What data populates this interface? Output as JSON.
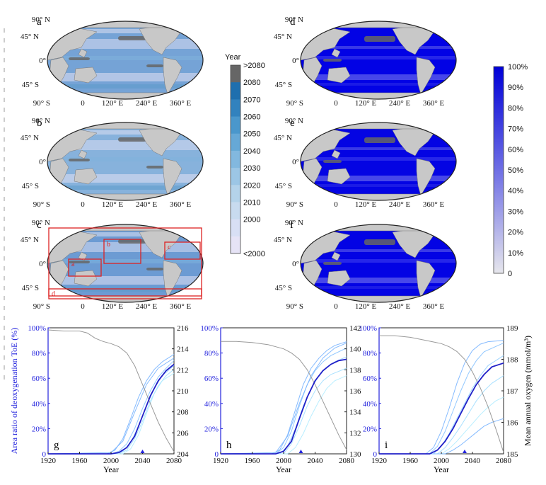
{
  "colors": {
    "land": "#c8c8c8",
    "exceed": "#666666",
    "dark_blue": "#0000e0",
    "line_gray": "#9a9a9a",
    "mean_line": "#2020c8",
    "red_box": "#dd2222"
  },
  "maps": [
    {
      "letter": "a",
      "style": "year",
      "shade": 0.55
    },
    {
      "letter": "b",
      "style": "year",
      "shade": 0.25
    },
    {
      "letter": "c",
      "style": "year",
      "shade": 0.7,
      "regions": [
        "a",
        "b",
        "c",
        "d"
      ]
    },
    {
      "letter": "d",
      "style": "pct",
      "shade": 0.96
    },
    {
      "letter": "e",
      "style": "pct",
      "shade": 0.9
    },
    {
      "letter": "f",
      "style": "pct",
      "shade": 0.92
    }
  ],
  "map_labels": {
    "lat": [
      "90° N",
      "45° N",
      "0°",
      "45° S",
      "90° S"
    ],
    "lon": [
      "0",
      "120° E",
      "240° E",
      "360° E"
    ]
  },
  "year_colorbar": {
    "title": "Year",
    "labels": [
      ">2080",
      "2080",
      "2070",
      "2060",
      "2050",
      "2040",
      "2030",
      "2020",
      "2010",
      "2000",
      "<2000"
    ],
    "colors": [
      "#666666",
      "#1f6fae",
      "#3282be",
      "#4a97cc",
      "#66a8d6",
      "#82b8df",
      "#9cc6e5",
      "#b4d3ea",
      "#c8dbef",
      "#d8dff4",
      "#e6e3f6"
    ]
  },
  "pct_colorbar": {
    "labels": [
      "100%",
      "90%",
      "80%",
      "70%",
      "60%",
      "50%",
      "40%",
      "30%",
      "20%",
      "10%",
      "0"
    ]
  },
  "chart_data": [
    {
      "type": "line",
      "panel": "g",
      "xlabel": "Year",
      "ylabel": "Area ratio of deoxygenation ToE (%)",
      "xlim": [
        1920,
        2080
      ],
      "x_ticks": [
        1920,
        1960,
        2000,
        2040,
        2080
      ],
      "ylim_left": [
        0,
        100
      ],
      "y_ticks_left": [
        "0",
        "20%",
        "40%",
        "60%",
        "80%",
        "100%"
      ],
      "ylim_right": [
        204,
        216
      ],
      "y_ticks_right": [
        204,
        206,
        208,
        210,
        212,
        214,
        216
      ],
      "marker_year": 2040,
      "mean_toe": {
        "x": [
          1920,
          2000,
          2010,
          2020,
          2030,
          2040,
          2050,
          2060,
          2070,
          2080
        ],
        "y": [
          0,
          0,
          1,
          5,
          14,
          30,
          46,
          58,
          66,
          71
        ]
      },
      "member_toe": [
        {
          "x": [
            1920,
            1995,
            2005,
            2015,
            2025,
            2035,
            2045,
            2055,
            2065,
            2080
          ],
          "y": [
            0,
            0,
            3,
            12,
            28,
            45,
            58,
            67,
            73,
            79
          ]
        },
        {
          "x": [
            1920,
            2000,
            2010,
            2020,
            2030,
            2040,
            2050,
            2060,
            2070,
            2080
          ],
          "y": [
            0,
            0,
            2,
            8,
            20,
            36,
            50,
            61,
            68,
            74
          ]
        },
        {
          "x": [
            1920,
            2005,
            2015,
            2025,
            2035,
            2045,
            2055,
            2065,
            2080
          ],
          "y": [
            0,
            0,
            2,
            9,
            22,
            38,
            52,
            62,
            70
          ]
        },
        {
          "x": [
            1920,
            2010,
            2020,
            2030,
            2040,
            2050,
            2060,
            2070,
            2080
          ],
          "y": [
            0,
            0,
            3,
            12,
            26,
            42,
            54,
            62,
            67
          ]
        },
        {
          "x": [
            1920,
            2015,
            2025,
            2035,
            2045,
            2055,
            2065,
            2080
          ],
          "y": [
            0,
            0,
            4,
            15,
            32,
            48,
            58,
            64
          ]
        },
        {
          "x": [
            1920,
            2000,
            2015,
            2030,
            2045,
            2060,
            2080
          ],
          "y": [
            0,
            1,
            10,
            33,
            55,
            68,
            76
          ]
        }
      ],
      "mean_oxygen": {
        "x": [
          1920,
          1940,
          1960,
          1970,
          1980,
          1990,
          2000,
          2010,
          2020,
          2030,
          2040,
          2050,
          2060,
          2070,
          2080
        ],
        "y": [
          215.8,
          215.7,
          215.7,
          215.5,
          215.0,
          214.7,
          214.5,
          214.2,
          213.6,
          212.4,
          210.6,
          208.8,
          207.0,
          205.5,
          204.2
        ]
      }
    },
    {
      "type": "line",
      "panel": "h",
      "xlabel": "Year",
      "xlim": [
        1920,
        2080
      ],
      "x_ticks": [
        1920,
        1960,
        2000,
        2040,
        2080
      ],
      "ylim_left": [
        0,
        100
      ],
      "y_ticks_left": [
        "0",
        "20%",
        "40%",
        "60%",
        "80%",
        "100%"
      ],
      "ylim_right": [
        130,
        142
      ],
      "y_ticks_right": [
        130,
        132,
        134,
        136,
        138,
        140,
        142
      ],
      "marker_year": 2022,
      "mean_toe": {
        "x": [
          1920,
          1990,
          2000,
          2010,
          2020,
          2030,
          2040,
          2050,
          2060,
          2070,
          2080
        ],
        "y": [
          0,
          0,
          2,
          10,
          28,
          45,
          58,
          66,
          71,
          74,
          75
        ]
      },
      "member_toe": [
        {
          "x": [
            1920,
            1985,
            1995,
            2005,
            2015,
            2025,
            2035,
            2045,
            2055,
            2065,
            2080
          ],
          "y": [
            0,
            0,
            3,
            15,
            35,
            55,
            68,
            76,
            82,
            86,
            89
          ]
        },
        {
          "x": [
            1920,
            1990,
            2000,
            2010,
            2020,
            2030,
            2040,
            2050,
            2060,
            2080
          ],
          "y": [
            0,
            0,
            5,
            18,
            38,
            55,
            66,
            73,
            78,
            84
          ]
        },
        {
          "x": [
            1920,
            1995,
            2005,
            2015,
            2025,
            2035,
            2045,
            2055,
            2065,
            2080
          ],
          "y": [
            0,
            0,
            6,
            20,
            38,
            52,
            62,
            69,
            73,
            77
          ]
        },
        {
          "x": [
            1920,
            2000,
            2010,
            2020,
            2030,
            2040,
            2050,
            2060,
            2080
          ],
          "y": [
            0,
            0,
            8,
            22,
            38,
            50,
            58,
            63,
            68
          ]
        },
        {
          "x": [
            1920,
            2005,
            2015,
            2025,
            2035,
            2045,
            2055,
            2065,
            2080
          ],
          "y": [
            0,
            0,
            5,
            16,
            30,
            42,
            52,
            58,
            62
          ]
        },
        {
          "x": [
            1920,
            1990,
            2005,
            2020,
            2035,
            2050,
            2065,
            2080
          ],
          "y": [
            0,
            1,
            14,
            40,
            62,
            76,
            84,
            88
          ]
        }
      ],
      "mean_oxygen": {
        "x": [
          1920,
          1940,
          1960,
          1980,
          1990,
          2000,
          2010,
          2020,
          2030,
          2040,
          2050,
          2060,
          2070,
          2080
        ],
        "y": [
          140.7,
          140.7,
          140.6,
          140.4,
          140.2,
          140.0,
          139.6,
          139.0,
          138.0,
          136.6,
          135.0,
          133.4,
          131.8,
          130.4
        ]
      }
    },
    {
      "type": "line",
      "panel": "i",
      "xlabel": "Year",
      "xlim": [
        1920,
        2080
      ],
      "x_ticks": [
        1920,
        1960,
        2000,
        2040,
        2080
      ],
      "ylim_left": [
        0,
        100
      ],
      "y_ticks_left": [
        "0",
        "20%",
        "40%",
        "60%",
        "80%",
        "100%"
      ],
      "ylabel_right": "Mean annual oxygen (mmol/m³)",
      "ylim_right": [
        185,
        189
      ],
      "y_ticks_right": [
        185,
        186,
        187,
        188,
        189
      ],
      "marker_year": 2030,
      "mean_toe": {
        "x": [
          1920,
          1985,
          1995,
          2005,
          2015,
          2025,
          2035,
          2045,
          2055,
          2065,
          2080
        ],
        "y": [
          0,
          0,
          3,
          10,
          20,
          32,
          44,
          55,
          63,
          69,
          72
        ]
      },
      "member_toe": [
        {
          "x": [
            1920,
            1980,
            1990,
            2000,
            2010,
            2020,
            2030,
            2040,
            2050,
            2060,
            2080
          ],
          "y": [
            0,
            0,
            5,
            18,
            36,
            56,
            72,
            82,
            87,
            89,
            90
          ]
        },
        {
          "x": [
            1920,
            1985,
            1995,
            2005,
            2015,
            2025,
            2035,
            2045,
            2055,
            2080
          ],
          "y": [
            0,
            0,
            6,
            18,
            34,
            50,
            64,
            74,
            81,
            88
          ]
        },
        {
          "x": [
            1920,
            1990,
            2000,
            2010,
            2020,
            2030,
            2040,
            2050,
            2060,
            2080
          ],
          "y": [
            0,
            0,
            6,
            16,
            28,
            40,
            52,
            62,
            70,
            78
          ]
        },
        {
          "x": [
            1920,
            1995,
            2005,
            2015,
            2025,
            2035,
            2045,
            2055,
            2065,
            2080
          ],
          "y": [
            0,
            0,
            5,
            13,
            22,
            32,
            42,
            50,
            56,
            62
          ]
        },
        {
          "x": [
            1920,
            2000,
            2010,
            2020,
            2030,
            2040,
            2050,
            2060,
            2070,
            2080
          ],
          "y": [
            0,
            0,
            4,
            10,
            17,
            24,
            31,
            37,
            42,
            45
          ]
        },
        {
          "x": [
            1920,
            2005,
            2015,
            2025,
            2035,
            2045,
            2055,
            2065,
            2080
          ],
          "y": [
            0,
            0,
            3,
            7,
            12,
            17,
            22,
            25,
            28
          ]
        }
      ],
      "mean_oxygen": {
        "x": [
          1920,
          1940,
          1960,
          1980,
          1990,
          2000,
          2010,
          2020,
          2030,
          2040,
          2050,
          2060,
          2070,
          2080
        ],
        "y": [
          188.75,
          188.75,
          188.7,
          188.6,
          188.55,
          188.5,
          188.4,
          188.25,
          188.0,
          187.6,
          187.1,
          186.5,
          185.8,
          185.05
        ]
      }
    }
  ]
}
